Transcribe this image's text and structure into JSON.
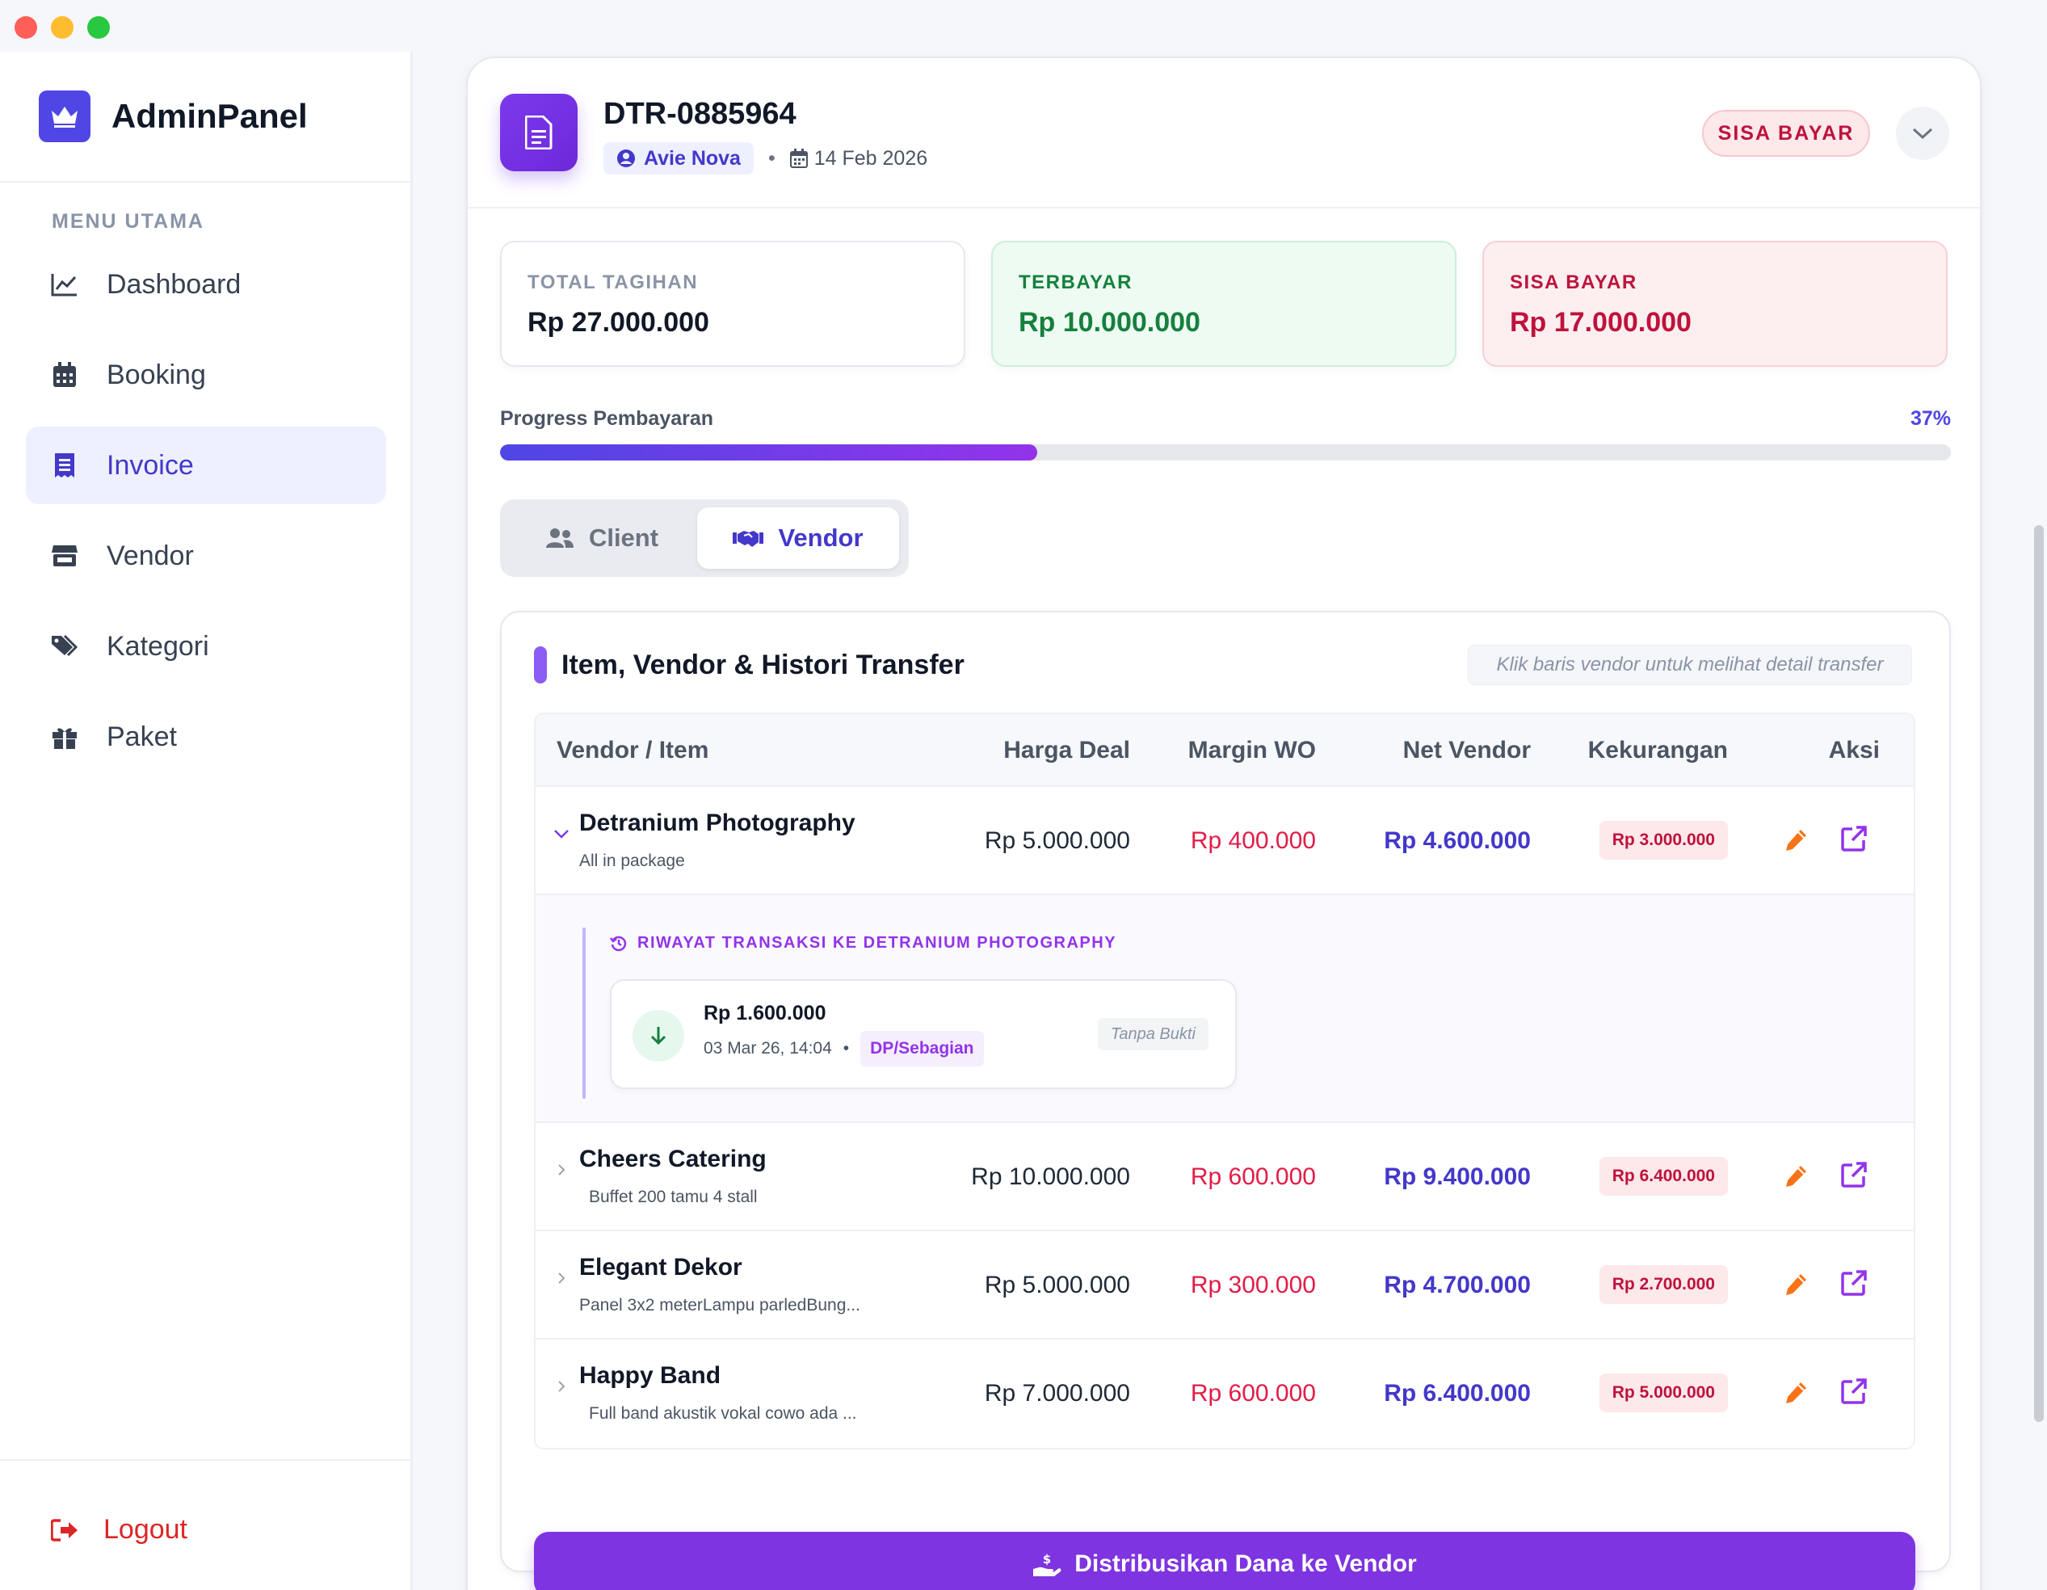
{
  "window": {
    "controls": [
      "close",
      "minimize",
      "maximize"
    ]
  },
  "sidebar": {
    "brand": "AdminPanel",
    "menu_heading": "MENU UTAMA",
    "items": [
      {
        "label": "Dashboard",
        "icon": "chart-line-icon",
        "active": false
      },
      {
        "label": "Booking",
        "icon": "calendar-icon",
        "active": false
      },
      {
        "label": "Invoice",
        "icon": "receipt-icon",
        "active": true
      },
      {
        "label": "Vendor",
        "icon": "store-icon",
        "active": false
      },
      {
        "label": "Kategori",
        "icon": "tags-icon",
        "active": false
      },
      {
        "label": "Paket",
        "icon": "gift-icon",
        "active": false
      }
    ],
    "logout": "Logout"
  },
  "invoice": {
    "id": "DTR-0885964",
    "client": "Avie Nova",
    "separator": "•",
    "date": "14 Feb 2026",
    "status": "SISA BAYAR"
  },
  "summary": {
    "total": {
      "label": "TOTAL TAGIHAN",
      "value": "Rp 27.000.000"
    },
    "paid": {
      "label": "TERBAYAR",
      "value": "Rp 10.000.000"
    },
    "remaining": {
      "label": "SISA BAYAR",
      "value": "Rp 17.000.000"
    }
  },
  "progress": {
    "label": "Progress Pembayaran",
    "percent_text": "37%",
    "value": 0.37
  },
  "tabs": {
    "client": "Client",
    "vendor": "Vendor",
    "active": "vendor"
  },
  "vendor_section": {
    "title": "Item, Vendor & Histori Transfer",
    "hint": "Klik baris vendor untuk melihat detail transfer",
    "columns": {
      "vendor": "Vendor / Item",
      "harga": "Harga Deal",
      "margin": "Margin WO",
      "net": "Net Vendor",
      "kurang": "Kekurangan",
      "aksi": "Aksi"
    },
    "rows": [
      {
        "name": "Detranium Photography",
        "desc": "All in package",
        "harga": "Rp 5.000.000",
        "margin": "Rp 400.000",
        "net": "Rp 4.600.000",
        "kurang": "Rp 3.000.000",
        "expanded": true
      },
      {
        "name": "Cheers Catering",
        "desc": "Buffet 200 tamu 4 stall",
        "harga": "Rp 10.000.000",
        "margin": "Rp 600.000",
        "net": "Rp 9.400.000",
        "kurang": "Rp 6.400.000",
        "expanded": false
      },
      {
        "name": "Elegant Dekor",
        "desc": "Panel 3x2 meterLampu parledBung...",
        "harga": "Rp 5.000.000",
        "margin": "Rp 300.000",
        "net": "Rp 4.700.000",
        "kurang": "Rp 2.700.000",
        "expanded": false
      },
      {
        "name": "Happy Band",
        "desc": "Full band  akustik vokal cowo ada ...",
        "harga": "Rp 7.000.000",
        "margin": "Rp 600.000",
        "net": "Rp 6.400.000",
        "kurang": "Rp 5.000.000",
        "expanded": false
      }
    ],
    "history": {
      "heading": "RIWAYAT TRANSAKSI KE DETRANIUM PHOTOGRAPHY",
      "transactions": [
        {
          "amount": "Rp 1.600.000",
          "datetime": "03 Mar 26, 14:04",
          "separator": "•",
          "type": "DP/Sebagian",
          "proof": "Tanpa Bukti"
        }
      ]
    },
    "distribute_button": "Distribusikan Dana ke Vendor"
  },
  "colors": {
    "accent": "#4f46e5",
    "purple": "#7e34e0",
    "success": "#15803d",
    "danger": "#be123c",
    "edit": "#f97316"
  }
}
